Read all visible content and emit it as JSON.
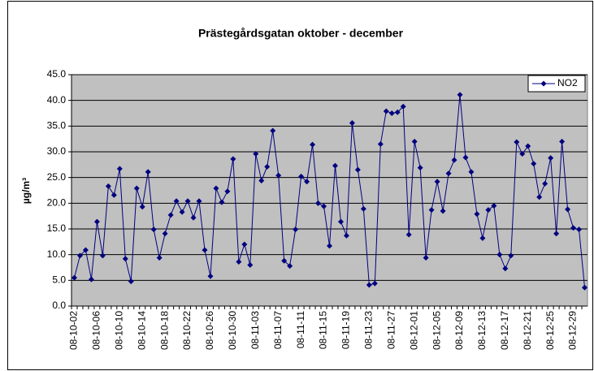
{
  "chart_data": {
    "type": "line",
    "title": "Prästegårdsgatan oktober - december",
    "y_label": "µg/m³",
    "categories": [
      "08-10-02",
      null,
      null,
      null,
      "08-10-06",
      null,
      null,
      null,
      "08-10-10",
      null,
      null,
      null,
      "08-10-14",
      null,
      null,
      null,
      "08-10-18",
      null,
      null,
      null,
      "08-10-22",
      null,
      null,
      null,
      "08-10-26",
      null,
      null,
      null,
      "08-10-30",
      null,
      null,
      null,
      "08-11-03",
      null,
      null,
      null,
      "08-11-07",
      null,
      null,
      null,
      "08-11-11",
      null,
      null,
      null,
      "08-11-15",
      null,
      null,
      null,
      "08-11-19",
      null,
      null,
      null,
      "08-11-23",
      null,
      null,
      null,
      "08-11-27",
      null,
      null,
      null,
      "08-12-01",
      null,
      null,
      null,
      "08-12-05",
      null,
      null,
      null,
      "08-12-09",
      null,
      null,
      null,
      "08-12-13",
      null,
      null,
      null,
      "08-12-17",
      null,
      null,
      null,
      "08-12-21",
      null,
      null,
      null,
      "08-12-25",
      null,
      null,
      null,
      "08-12-29",
      null,
      null
    ],
    "series": [
      {
        "name": "NO2",
        "color": "#000080",
        "values": [
          5.5,
          9.8,
          10.9,
          5.2,
          16.4,
          9.8,
          23.3,
          21.6,
          26.7,
          9.2,
          4.8,
          22.9,
          19.3,
          26.1,
          14.9,
          9.4,
          14.1,
          17.7,
          20.4,
          18.3,
          20.4,
          17.2,
          20.4,
          10.9,
          5.8,
          22.9,
          20.2,
          22.3,
          28.6,
          8.6,
          12.0,
          8.0,
          29.6,
          24.4,
          27.1,
          34.1,
          25.4,
          8.8,
          7.8,
          14.9,
          25.2,
          24.2,
          31.4,
          20.0,
          19.4,
          11.7,
          27.3,
          16.4,
          13.7,
          35.6,
          26.5,
          18.9,
          4.1,
          4.4,
          31.5,
          37.9,
          37.5,
          37.7,
          38.8,
          13.9,
          32.0,
          26.9,
          9.4,
          18.7,
          24.2,
          18.5,
          25.8,
          28.4,
          41.1,
          28.9,
          26.1,
          17.9,
          13.2,
          18.7,
          19.5,
          10.0,
          7.3,
          9.8,
          31.9,
          29.6,
          31.1,
          27.7,
          21.2,
          23.8,
          28.8,
          14.1,
          32.0,
          18.8,
          15.2,
          14.9,
          3.6
        ]
      }
    ],
    "ylim": [
      0,
      45
    ],
    "yticks": [
      {
        "value": 0,
        "label": "0.0"
      },
      {
        "value": 5,
        "label": "5.0"
      },
      {
        "value": 10,
        "label": "10.0"
      },
      {
        "value": 15,
        "label": "15.0"
      },
      {
        "value": 20,
        "label": "20.0"
      },
      {
        "value": 25,
        "label": "25.0"
      },
      {
        "value": 30,
        "label": "30.0"
      },
      {
        "value": 35,
        "label": "35.0"
      },
      {
        "value": 40,
        "label": "40.0"
      },
      {
        "value": 45,
        "label": "45.0"
      }
    ],
    "grid": true,
    "legend": "top-right"
  }
}
